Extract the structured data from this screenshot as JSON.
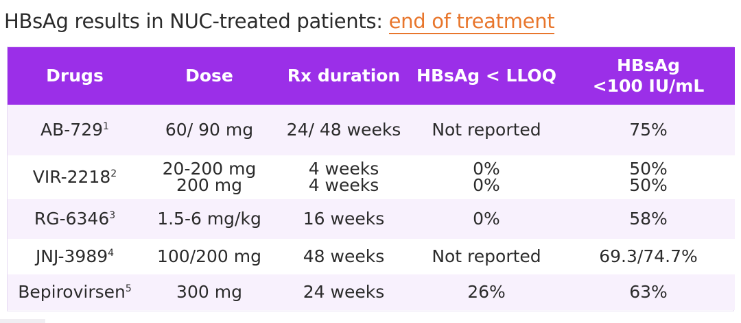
{
  "title": {
    "prefix": "HBsAg results in NUC-treated patients: ",
    "highlight": "end of treatment",
    "highlight_color": "#e8762c"
  },
  "table": {
    "header_color": "#9b2fe8",
    "stripe_color": "#f8f1fd",
    "headers": [
      "Drugs",
      "Dose",
      "Rx duration",
      "HBsAg < LLOQ",
      "HBsAg <100 IU/mL"
    ],
    "rows": [
      {
        "drug": "AB-729",
        "ref": "1",
        "dose": [
          "60/ 90 mg"
        ],
        "duration": [
          "24/ 48 weeks"
        ],
        "lloq": [
          "Not reported"
        ],
        "iu100": [
          "75%"
        ]
      },
      {
        "drug": "VIR-2218",
        "ref": "2",
        "dose": [
          "20-200 mg",
          "200 mg"
        ],
        "duration": [
          "4 weeks",
          "4 weeks"
        ],
        "lloq": [
          "0%",
          "0%"
        ],
        "iu100": [
          "50%",
          "50%"
        ]
      },
      {
        "drug": "RG-6346",
        "ref": "3",
        "dose": [
          "1.5-6 mg/kg"
        ],
        "duration": [
          "16 weeks"
        ],
        "lloq": [
          "0%"
        ],
        "iu100": [
          "58%"
        ]
      },
      {
        "drug": "JNJ-3989",
        "ref": "4",
        "dose": [
          "100/200 mg"
        ],
        "duration": [
          "48 weeks"
        ],
        "lloq": [
          "Not reported"
        ],
        "iu100": [
          "69.3/74.7%"
        ]
      },
      {
        "drug": "Bepirovirsen",
        "ref": "5",
        "dose": [
          "300 mg"
        ],
        "duration": [
          "24 weeks"
        ],
        "lloq": [
          "26%"
        ],
        "iu100": [
          "63%"
        ]
      }
    ]
  }
}
